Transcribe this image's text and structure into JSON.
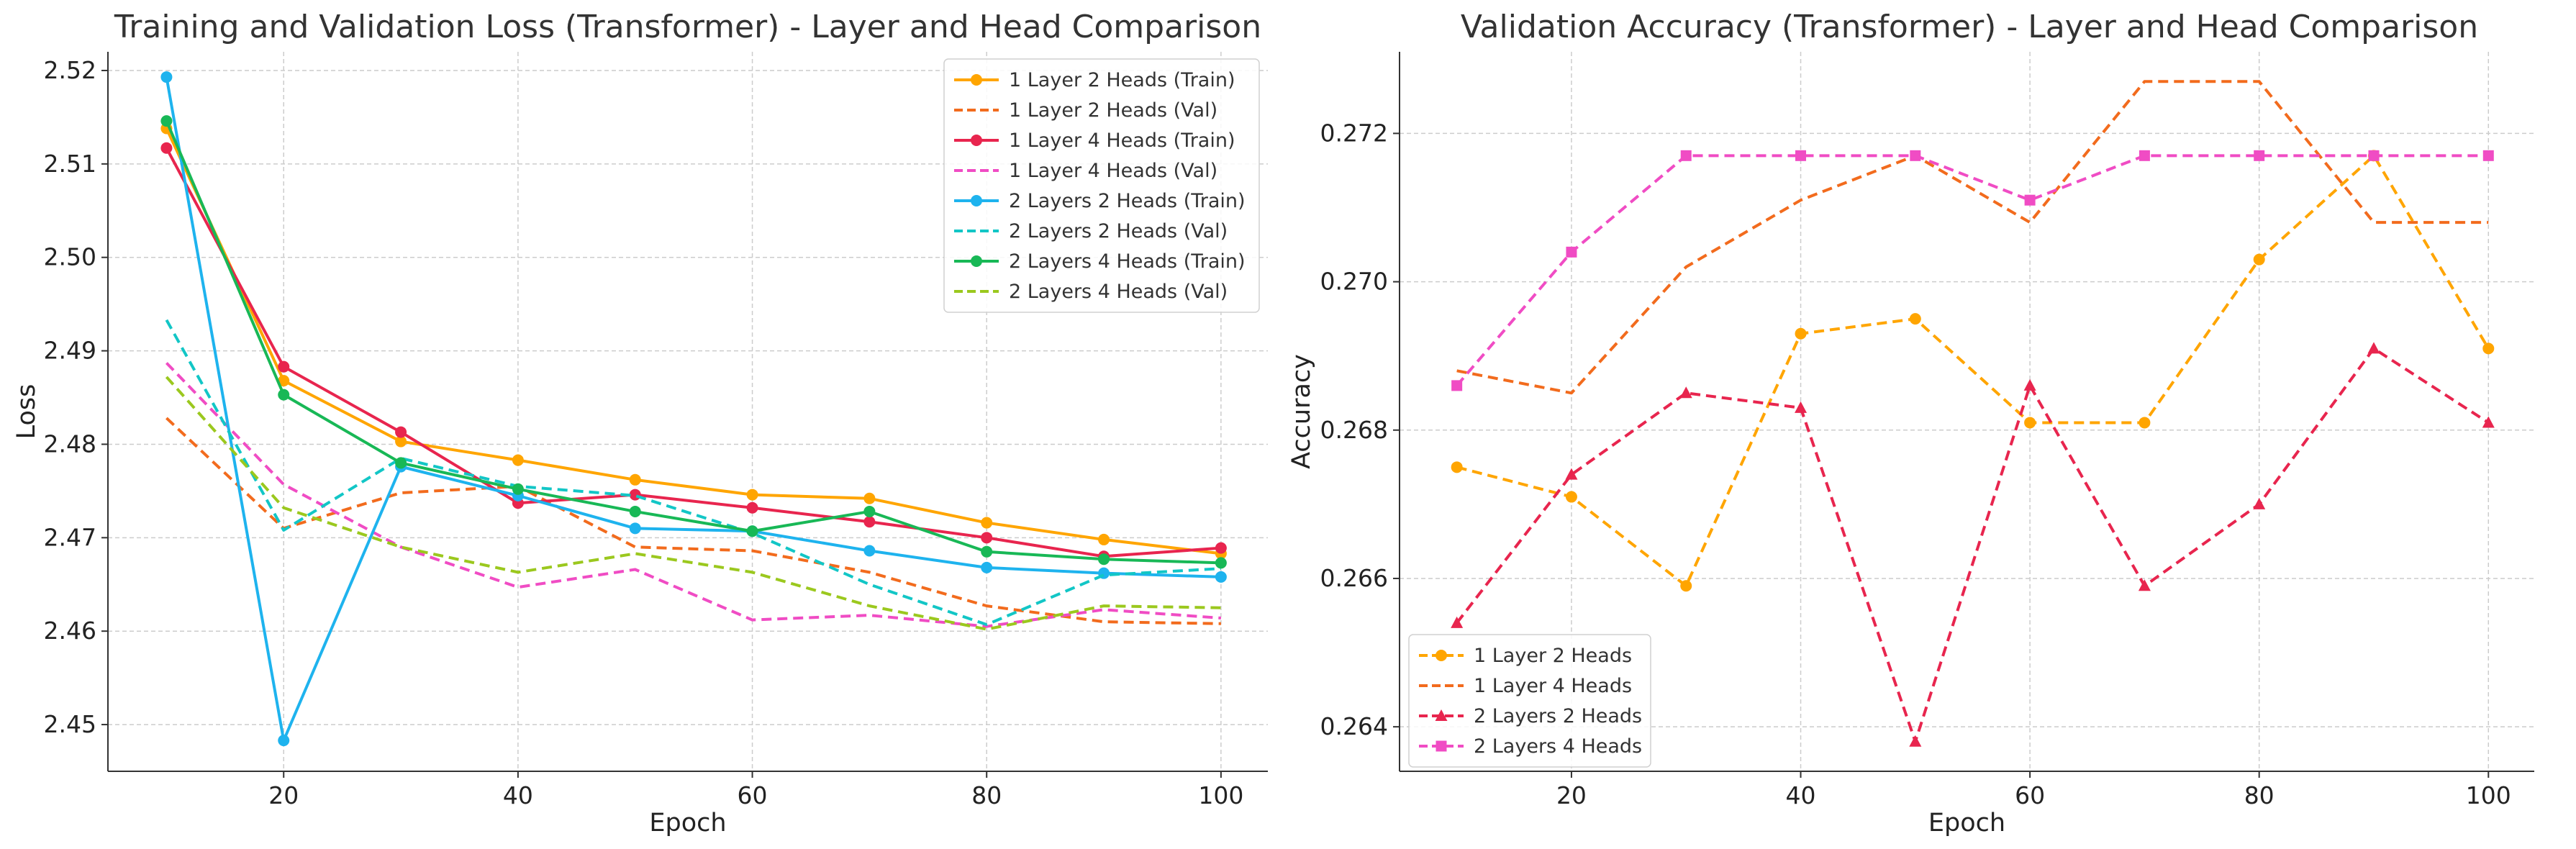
{
  "chart_data": [
    {
      "type": "line",
      "title": "Training and Validation Loss (Transformer) - Layer and Head Comparison",
      "xlabel": "Epoch",
      "ylabel": "Loss",
      "xlim": [
        5,
        104
      ],
      "ylim": [
        2.445,
        2.522
      ],
      "xticks": [
        20,
        40,
        60,
        80,
        100
      ],
      "yticks": [
        2.45,
        2.46,
        2.47,
        2.48,
        2.49,
        2.5,
        2.51,
        2.52
      ],
      "grid": true,
      "legend_position": "top-right",
      "x": [
        10,
        20,
        30,
        40,
        50,
        60,
        70,
        80,
        90,
        100
      ],
      "series": [
        {
          "name": "1 Layer 2 Heads (Train)",
          "color": "#FFA500",
          "style": "solid",
          "marker": "circle",
          "values": [
            2.5138,
            2.4868,
            2.4803,
            2.4783,
            2.4762,
            2.4746,
            2.4742,
            2.4716,
            2.4698,
            2.4683
          ]
        },
        {
          "name": "1 Layer 2 Heads (Val)",
          "color": "#F26B1D",
          "style": "dashed",
          "marker": "none",
          "values": [
            2.4828,
            2.471,
            2.4748,
            2.4755,
            2.469,
            2.4686,
            2.4663,
            2.4627,
            2.461,
            2.4608
          ]
        },
        {
          "name": "1 Layer 4 Heads (Train)",
          "color": "#E8254E",
          "style": "solid",
          "marker": "circle",
          "values": [
            2.5117,
            2.4883,
            2.4813,
            2.4737,
            2.4746,
            2.4732,
            2.4717,
            2.47,
            2.468,
            2.4689
          ]
        },
        {
          "name": "1 Layer 4 Heads (Val)",
          "color": "#F04CC4",
          "style": "dashed",
          "marker": "none",
          "values": [
            2.4887,
            2.4757,
            2.469,
            2.4647,
            2.4666,
            2.4612,
            2.4617,
            2.4605,
            2.4623,
            2.4614
          ]
        },
        {
          "name": "2 Layers 2 Heads (Train)",
          "color": "#1EB3EE",
          "style": "solid",
          "marker": "circle",
          "values": [
            2.5193,
            2.4483,
            2.4776,
            2.4745,
            2.471,
            2.4707,
            2.4686,
            2.4668,
            2.4662,
            2.4658
          ]
        },
        {
          "name": "2 Layers 2 Heads (Val)",
          "color": "#12C6C6",
          "style": "dashed",
          "marker": "none",
          "values": [
            2.4933,
            2.4708,
            2.4785,
            2.4755,
            2.4745,
            2.4705,
            2.465,
            2.4607,
            2.466,
            2.4667
          ]
        },
        {
          "name": "2 Layers 4 Heads (Train)",
          "color": "#18B856",
          "style": "solid",
          "marker": "circle",
          "values": [
            2.5146,
            2.4853,
            2.478,
            2.4752,
            2.4728,
            2.4707,
            2.4728,
            2.4685,
            2.4677,
            2.4673
          ]
        },
        {
          "name": "2 Layers 4 Heads (Val)",
          "color": "#9BC81E",
          "style": "dashed",
          "marker": "none",
          "values": [
            2.4872,
            2.4732,
            2.469,
            2.4663,
            2.4683,
            2.4663,
            2.4627,
            2.4602,
            2.4627,
            2.4625
          ]
        }
      ]
    },
    {
      "type": "line",
      "title": "Validation Accuracy (Transformer) - Layer and Head Comparison",
      "xlabel": "Epoch",
      "ylabel": "Accuracy",
      "xlim": [
        5,
        104
      ],
      "ylim": [
        0.2634,
        0.2731
      ],
      "xticks": [
        20,
        40,
        60,
        80,
        100
      ],
      "yticks": [
        0.264,
        0.266,
        0.268,
        0.27,
        0.272
      ],
      "grid": true,
      "legend_position": "bottom-left",
      "x": [
        10,
        20,
        30,
        40,
        50,
        60,
        70,
        80,
        90,
        100
      ],
      "series": [
        {
          "name": "1 Layer 2 Heads",
          "color": "#FFA500",
          "style": "dashed",
          "marker": "circle",
          "values": [
            0.2675,
            0.2671,
            0.2659,
            0.2693,
            0.2695,
            0.2681,
            0.2681,
            0.2703,
            0.2717,
            0.2691
          ]
        },
        {
          "name": "1 Layer 4 Heads",
          "color": "#F26B1D",
          "style": "dashed",
          "marker": "none",
          "values": [
            0.2688,
            0.2685,
            0.2702,
            0.2711,
            0.2717,
            0.2708,
            0.2727,
            0.2727,
            0.2708,
            0.2708
          ]
        },
        {
          "name": "2 Layers 2 Heads",
          "color": "#E8254E",
          "style": "dashed",
          "marker": "triangle",
          "values": [
            0.2654,
            0.2674,
            0.2685,
            0.2683,
            0.2638,
            0.2686,
            0.2659,
            0.267,
            0.2691,
            0.2681
          ]
        },
        {
          "name": "2 Layers 4 Heads",
          "color": "#F04CC4",
          "style": "dashed",
          "marker": "square",
          "values": [
            0.2686,
            0.2704,
            0.2717,
            0.2717,
            0.2717,
            0.2711,
            0.2717,
            0.2717,
            0.2717,
            0.2717
          ]
        }
      ]
    }
  ]
}
